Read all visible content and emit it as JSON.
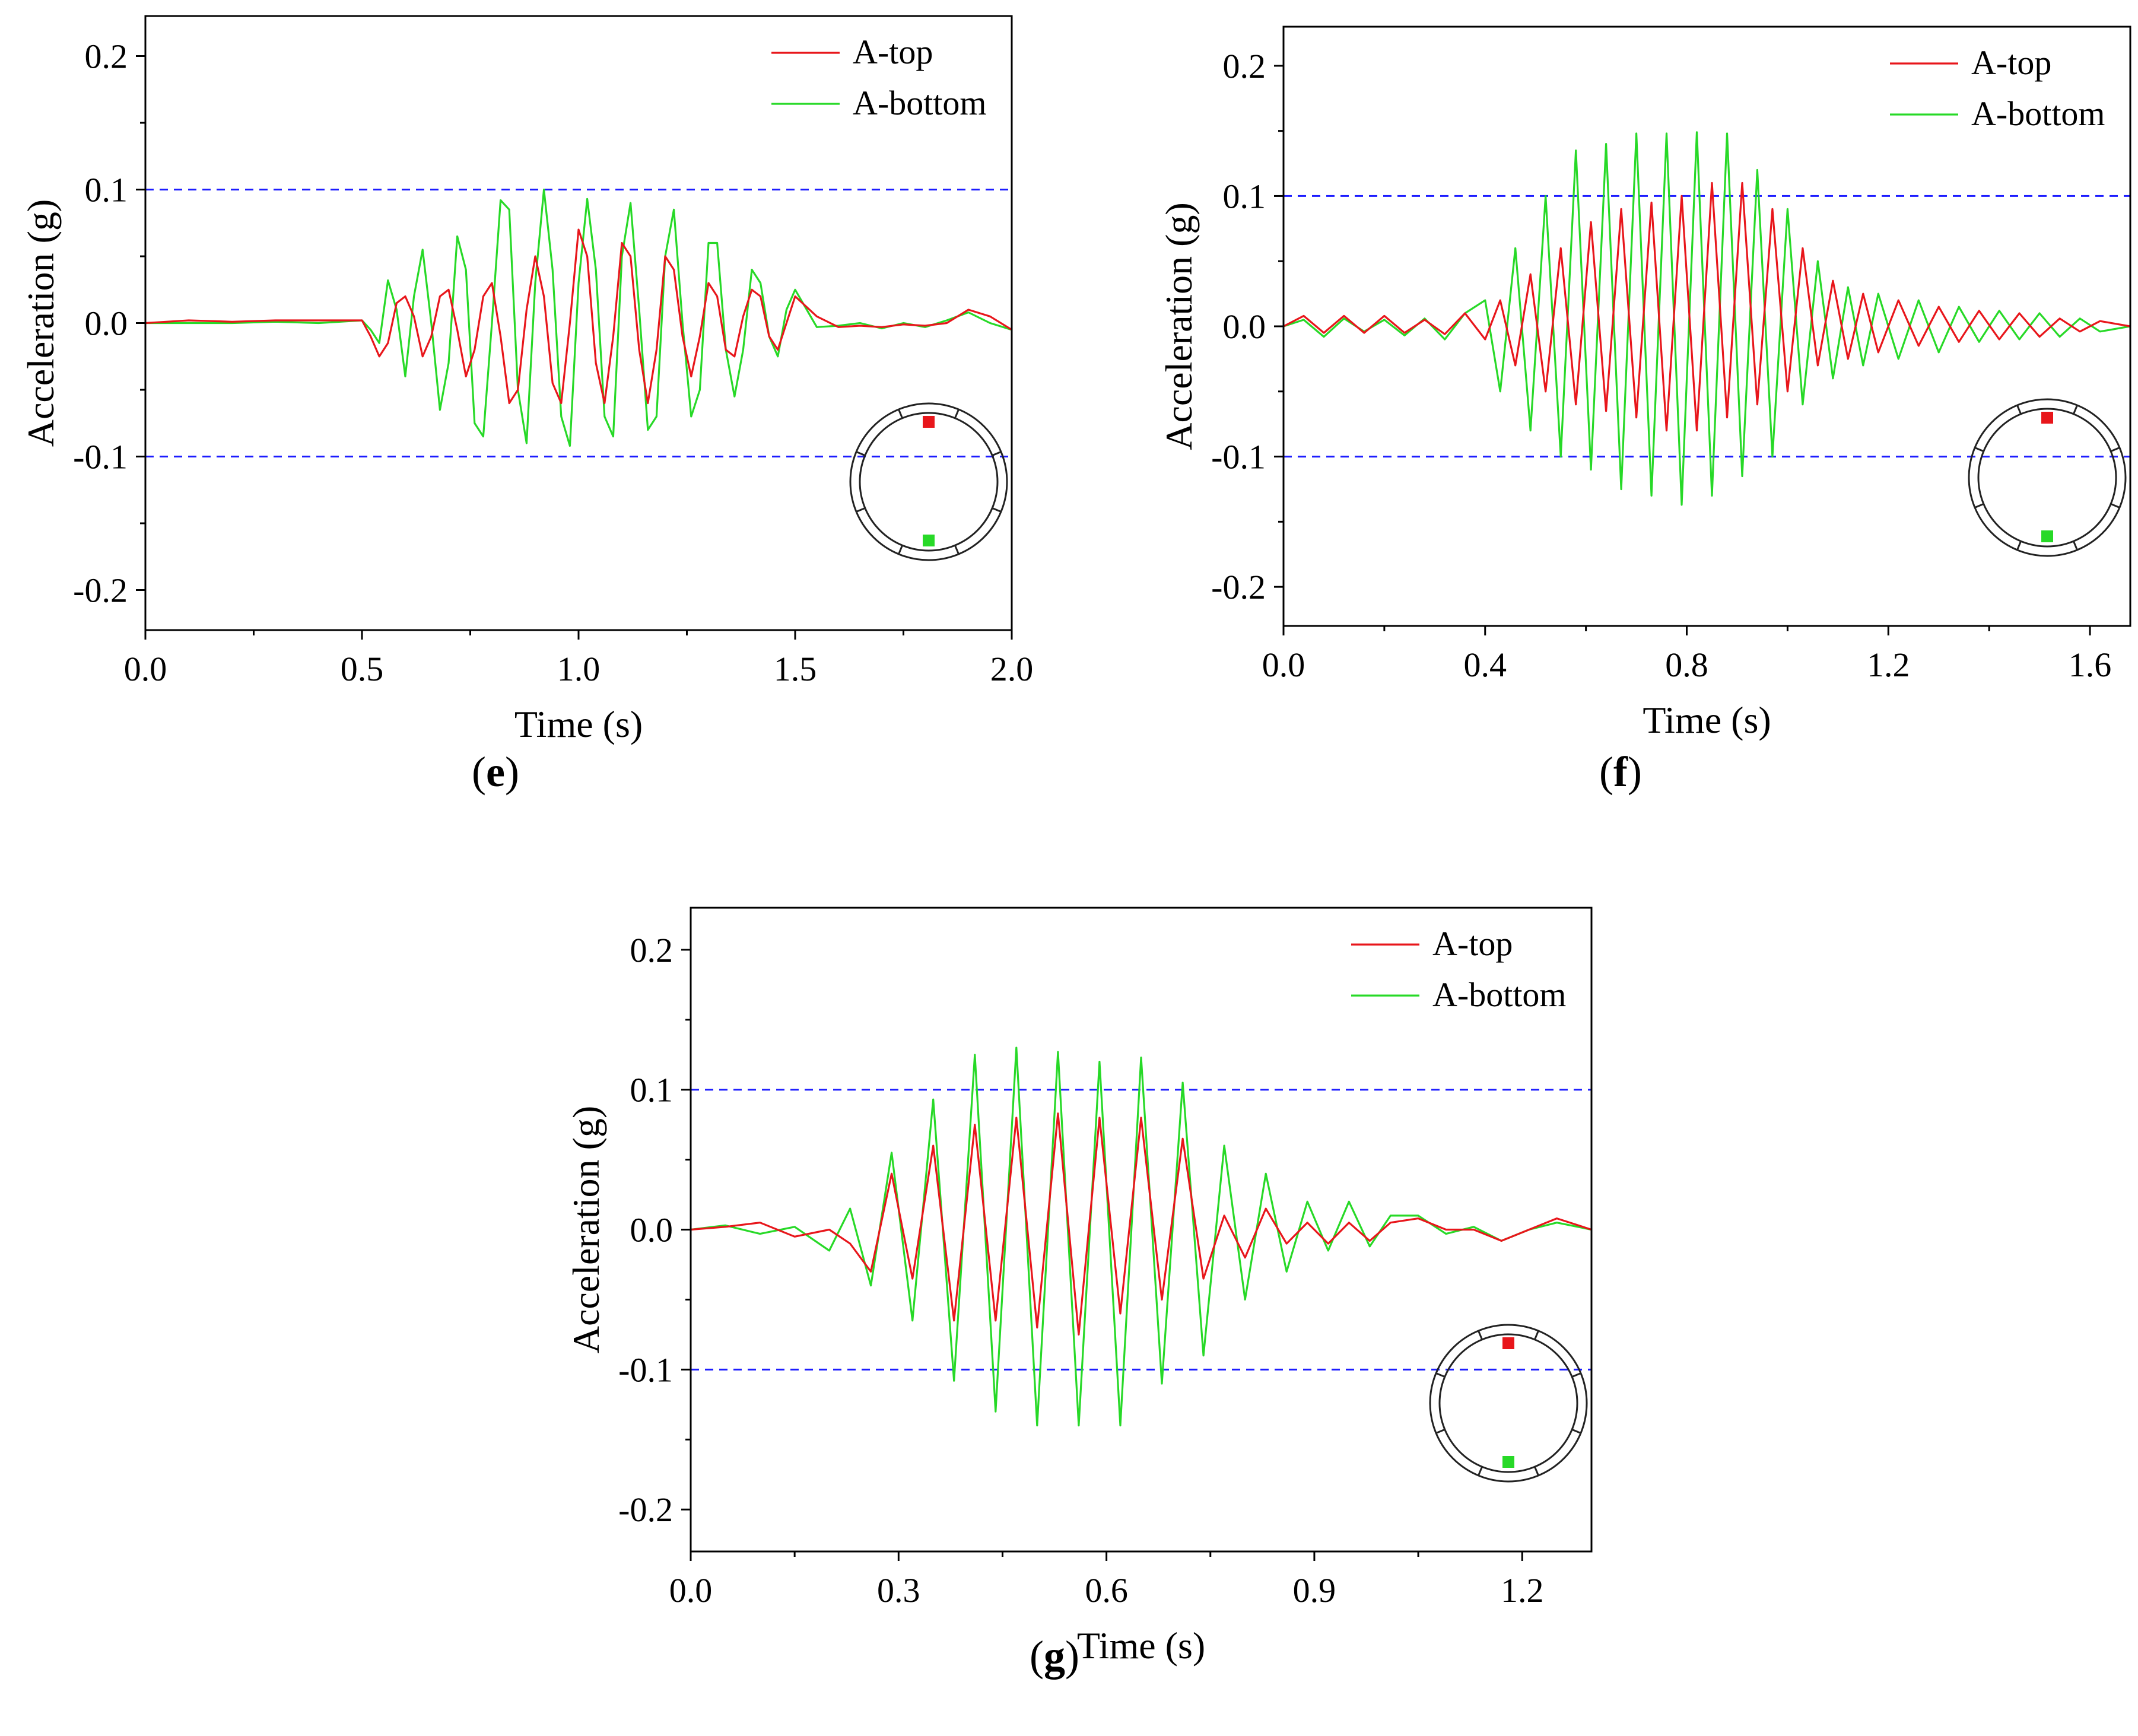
{
  "colors": {
    "top": "#e8161b",
    "bottom": "#27d927",
    "ref": "#1c1cff",
    "axis": "#000000"
  },
  "chart_data": [
    {
      "id": "e",
      "caption_open": "(",
      "caption_letter": "e",
      "caption_close": ")",
      "type": "line",
      "xlabel": "Time (s)",
      "ylabel": "Acceleration (g)",
      "xlim": [
        0.0,
        2.0
      ],
      "ylim": [
        -0.23,
        0.23
      ],
      "xticks": [
        "0.0",
        "0.5",
        "1.0",
        "1.5",
        "2.0"
      ],
      "yticks": [
        "-0.2",
        "-0.1",
        "0.0",
        "0.1",
        "0.2"
      ],
      "ref_lines": [
        0.1,
        -0.1
      ],
      "series": [
        {
          "name": "A-top",
          "color": "#e8161b",
          "x": [
            0.0,
            0.1,
            0.2,
            0.3,
            0.4,
            0.5,
            0.52,
            0.54,
            0.56,
            0.58,
            0.6,
            0.62,
            0.64,
            0.66,
            0.68,
            0.7,
            0.72,
            0.74,
            0.76,
            0.78,
            0.8,
            0.82,
            0.84,
            0.86,
            0.88,
            0.9,
            0.92,
            0.94,
            0.96,
            0.98,
            1.0,
            1.02,
            1.04,
            1.06,
            1.08,
            1.1,
            1.12,
            1.14,
            1.16,
            1.18,
            1.2,
            1.22,
            1.24,
            1.26,
            1.28,
            1.3,
            1.32,
            1.34,
            1.36,
            1.38,
            1.4,
            1.42,
            1.44,
            1.46,
            1.48,
            1.5,
            1.55,
            1.6,
            1.65,
            1.7,
            1.75,
            1.8,
            1.85,
            1.9,
            1.95,
            2.0
          ],
          "y": [
            0.0,
            0.002,
            0.001,
            0.002,
            0.002,
            0.002,
            -0.01,
            -0.025,
            -0.015,
            0.015,
            0.02,
            0.005,
            -0.025,
            -0.01,
            0.02,
            0.025,
            -0.005,
            -0.04,
            -0.02,
            0.02,
            0.03,
            -0.01,
            -0.06,
            -0.05,
            0.01,
            0.05,
            0.02,
            -0.045,
            -0.06,
            0.0,
            0.07,
            0.05,
            -0.03,
            -0.06,
            -0.01,
            0.06,
            0.05,
            -0.02,
            -0.06,
            -0.02,
            0.05,
            0.04,
            -0.01,
            -0.04,
            -0.01,
            0.03,
            0.02,
            -0.02,
            -0.025,
            0.005,
            0.025,
            0.02,
            -0.01,
            -0.02,
            0.0,
            0.02,
            0.005,
            -0.003,
            -0.002,
            -0.003,
            -0.001,
            -0.002,
            0.0,
            0.01,
            0.005,
            -0.005
          ]
        },
        {
          "name": "A-bottom",
          "color": "#27d927",
          "x": [
            0.0,
            0.1,
            0.2,
            0.3,
            0.4,
            0.5,
            0.52,
            0.54,
            0.56,
            0.58,
            0.6,
            0.62,
            0.64,
            0.66,
            0.68,
            0.7,
            0.72,
            0.74,
            0.76,
            0.78,
            0.8,
            0.82,
            0.84,
            0.86,
            0.88,
            0.9,
            0.92,
            0.94,
            0.96,
            0.98,
            1.0,
            1.02,
            1.04,
            1.06,
            1.08,
            1.1,
            1.12,
            1.14,
            1.16,
            1.18,
            1.2,
            1.22,
            1.24,
            1.26,
            1.28,
            1.3,
            1.32,
            1.34,
            1.36,
            1.38,
            1.4,
            1.42,
            1.44,
            1.46,
            1.48,
            1.5,
            1.55,
            1.6,
            1.65,
            1.7,
            1.75,
            1.8,
            1.85,
            1.9,
            1.95,
            2.0
          ],
          "y": [
            0.0,
            0.0,
            0.0,
            0.001,
            0.0,
            0.002,
            -0.005,
            -0.015,
            0.032,
            0.01,
            -0.04,
            0.02,
            0.055,
            0.0,
            -0.065,
            -0.03,
            0.065,
            0.04,
            -0.075,
            -0.085,
            0.0,
            0.092,
            0.085,
            -0.05,
            -0.09,
            0.03,
            0.1,
            0.04,
            -0.07,
            -0.092,
            0.03,
            0.093,
            0.04,
            -0.07,
            -0.085,
            0.05,
            0.09,
            0.01,
            -0.08,
            -0.07,
            0.05,
            0.085,
            0.0,
            -0.07,
            -0.05,
            0.06,
            0.06,
            -0.02,
            -0.055,
            -0.02,
            0.04,
            0.03,
            -0.01,
            -0.025,
            0.01,
            0.025,
            -0.003,
            -0.002,
            0.0,
            -0.004,
            0.0,
            -0.003,
            0.002,
            0.008,
            0.0,
            -0.005
          ]
        }
      ]
    },
    {
      "id": "f",
      "caption_open": "(",
      "caption_letter": "f",
      "caption_close": ")",
      "type": "line",
      "xlabel": "Time (s)",
      "ylabel": "Acceleration (g)",
      "xlim": [
        0.0,
        1.68
      ],
      "ylim": [
        -0.23,
        0.23
      ],
      "xticks": [
        "0.0",
        "0.4",
        "0.8",
        "1.2",
        "1.6"
      ],
      "yticks": [
        "-0.2",
        "-0.1",
        "0.0",
        "0.1",
        "0.2"
      ],
      "ref_lines": [
        0.1,
        -0.1
      ],
      "series": [
        {
          "name": "A-top",
          "color": "#e8161b",
          "x": [
            0.0,
            0.04,
            0.08,
            0.12,
            0.16,
            0.2,
            0.24,
            0.28,
            0.32,
            0.36,
            0.4,
            0.43,
            0.46,
            0.49,
            0.52,
            0.55,
            0.58,
            0.61,
            0.64,
            0.67,
            0.7,
            0.73,
            0.76,
            0.79,
            0.82,
            0.85,
            0.88,
            0.91,
            0.94,
            0.97,
            1.0,
            1.03,
            1.06,
            1.09,
            1.12,
            1.15,
            1.18,
            1.22,
            1.26,
            1.3,
            1.34,
            1.38,
            1.42,
            1.46,
            1.5,
            1.54,
            1.58,
            1.62,
            1.68
          ],
          "y": [
            0.0,
            0.008,
            -0.005,
            0.008,
            -0.005,
            0.008,
            -0.005,
            0.005,
            -0.006,
            0.01,
            -0.01,
            0.02,
            -0.03,
            0.04,
            -0.05,
            0.06,
            -0.06,
            0.08,
            -0.065,
            0.09,
            -0.07,
            0.095,
            -0.08,
            0.1,
            -0.08,
            0.11,
            -0.07,
            0.11,
            -0.06,
            0.09,
            -0.05,
            0.06,
            -0.03,
            0.035,
            -0.025,
            0.025,
            -0.02,
            0.02,
            -0.015,
            0.015,
            -0.012,
            0.012,
            -0.01,
            0.01,
            -0.008,
            0.006,
            -0.004,
            0.004,
            0.0
          ]
        },
        {
          "name": "A-bottom",
          "color": "#27d927",
          "x": [
            0.0,
            0.04,
            0.08,
            0.12,
            0.16,
            0.2,
            0.24,
            0.28,
            0.32,
            0.36,
            0.4,
            0.43,
            0.46,
            0.49,
            0.52,
            0.55,
            0.58,
            0.61,
            0.64,
            0.67,
            0.7,
            0.73,
            0.76,
            0.79,
            0.82,
            0.85,
            0.88,
            0.91,
            0.94,
            0.97,
            1.0,
            1.03,
            1.06,
            1.09,
            1.12,
            1.15,
            1.18,
            1.22,
            1.26,
            1.3,
            1.34,
            1.38,
            1.42,
            1.46,
            1.5,
            1.54,
            1.58,
            1.62,
            1.68
          ],
          "y": [
            0.0,
            0.005,
            -0.008,
            0.006,
            -0.004,
            0.005,
            -0.007,
            0.006,
            -0.01,
            0.01,
            0.02,
            -0.05,
            0.06,
            -0.08,
            0.1,
            -0.1,
            0.135,
            -0.11,
            0.14,
            -0.125,
            0.148,
            -0.13,
            0.148,
            -0.137,
            0.149,
            -0.13,
            0.148,
            -0.115,
            0.12,
            -0.1,
            0.09,
            -0.06,
            0.05,
            -0.04,
            0.03,
            -0.03,
            0.025,
            -0.025,
            0.02,
            -0.02,
            0.015,
            -0.012,
            0.012,
            -0.01,
            0.01,
            -0.008,
            0.006,
            -0.004,
            0.0
          ]
        }
      ]
    },
    {
      "id": "g",
      "caption_open": "(",
      "caption_letter": "g",
      "caption_close": ")",
      "type": "line",
      "xlabel": "Time (s)",
      "ylabel": "Acceleration (g)",
      "xlim": [
        0.0,
        1.3
      ],
      "ylim": [
        -0.23,
        0.23
      ],
      "xticks": [
        "0.0",
        "0.3",
        "0.6",
        "0.9",
        "1.2"
      ],
      "yticks": [
        "-0.2",
        "-0.1",
        "0.0",
        "0.1",
        "0.2"
      ],
      "ref_lines": [
        0.1,
        -0.1
      ],
      "series": [
        {
          "name": "A-top",
          "color": "#e8161b",
          "x": [
            0.0,
            0.05,
            0.1,
            0.15,
            0.2,
            0.23,
            0.26,
            0.29,
            0.32,
            0.35,
            0.38,
            0.41,
            0.44,
            0.47,
            0.5,
            0.53,
            0.56,
            0.59,
            0.62,
            0.65,
            0.68,
            0.71,
            0.74,
            0.77,
            0.8,
            0.83,
            0.86,
            0.89,
            0.92,
            0.95,
            0.98,
            1.01,
            1.05,
            1.09,
            1.13,
            1.17,
            1.21,
            1.25,
            1.3
          ],
          "y": [
            0.0,
            0.002,
            0.005,
            -0.005,
            0.0,
            -0.01,
            -0.03,
            0.04,
            -0.035,
            0.06,
            -0.065,
            0.075,
            -0.065,
            0.08,
            -0.07,
            0.083,
            -0.075,
            0.08,
            -0.06,
            0.08,
            -0.05,
            0.065,
            -0.035,
            0.01,
            -0.02,
            0.015,
            -0.01,
            0.005,
            -0.01,
            0.005,
            -0.008,
            0.005,
            0.008,
            0.0,
            0.0,
            -0.008,
            0.0,
            0.008,
            0.0
          ]
        },
        {
          "name": "A-bottom",
          "color": "#27d927",
          "x": [
            0.0,
            0.05,
            0.1,
            0.15,
            0.2,
            0.23,
            0.26,
            0.29,
            0.32,
            0.35,
            0.38,
            0.41,
            0.44,
            0.47,
            0.5,
            0.53,
            0.56,
            0.59,
            0.62,
            0.65,
            0.68,
            0.71,
            0.74,
            0.77,
            0.8,
            0.83,
            0.86,
            0.89,
            0.92,
            0.95,
            0.98,
            1.01,
            1.05,
            1.09,
            1.13,
            1.17,
            1.21,
            1.25,
            1.3
          ],
          "y": [
            0.0,
            0.003,
            -0.003,
            0.002,
            -0.015,
            0.015,
            -0.04,
            0.055,
            -0.065,
            0.093,
            -0.108,
            0.125,
            -0.13,
            0.13,
            -0.14,
            0.127,
            -0.14,
            0.12,
            -0.14,
            0.123,
            -0.11,
            0.105,
            -0.09,
            0.06,
            -0.05,
            0.04,
            -0.03,
            0.02,
            -0.015,
            0.02,
            -0.012,
            0.01,
            0.01,
            -0.003,
            0.002,
            -0.008,
            0.0,
            0.005,
            0.0
          ]
        }
      ]
    }
  ]
}
